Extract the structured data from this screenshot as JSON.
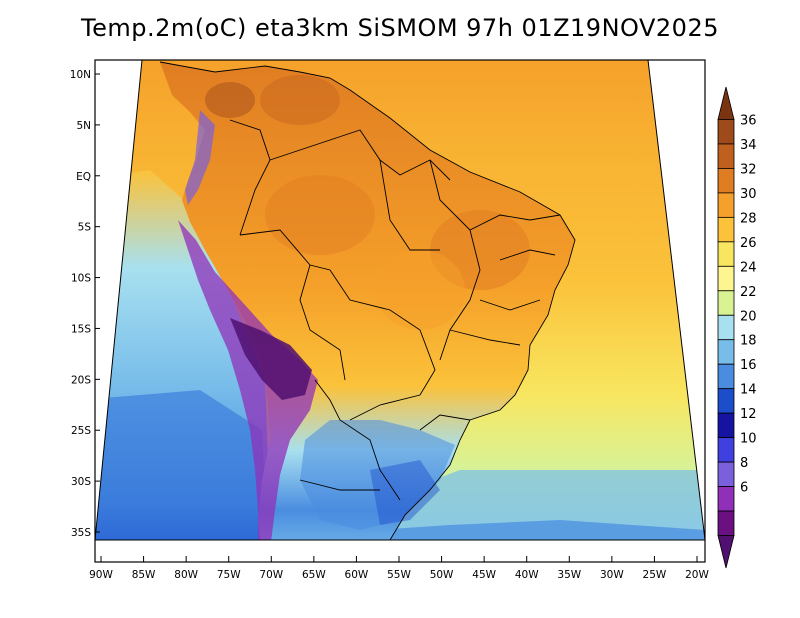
{
  "title": "Temp.2m(oC) eta3km SiSMOM 97h 01Z19NOV2025",
  "lat_ticks": [
    "10N",
    "5N",
    "EQ",
    "5S",
    "10S",
    "15S",
    "20S",
    "25S",
    "30S",
    "35S"
  ],
  "lon_ticks": [
    "90W",
    "85W",
    "80W",
    "75W",
    "70W",
    "65W",
    "60W",
    "55W",
    "50W",
    "45W",
    "40W",
    "35W",
    "30W",
    "25W",
    "20W"
  ],
  "colorbar": {
    "labels": [
      "36",
      "34",
      "32",
      "30",
      "28",
      "26",
      "24",
      "22",
      "20",
      "18",
      "16",
      "14",
      "12",
      "10",
      "8",
      "6"
    ],
    "colors": [
      "#7a3410",
      "#9e4a1a",
      "#c0601e",
      "#e07d22",
      "#f5a02a",
      "#fbc23a",
      "#f8e660",
      "#fdf590",
      "#d9f294",
      "#a8e0ef",
      "#78bdea",
      "#4a8de0",
      "#1c4ecc",
      "#1414a0",
      "#4040e0",
      "#7a60dc",
      "#9030b8",
      "#6a1080",
      "#501070"
    ]
  }
}
